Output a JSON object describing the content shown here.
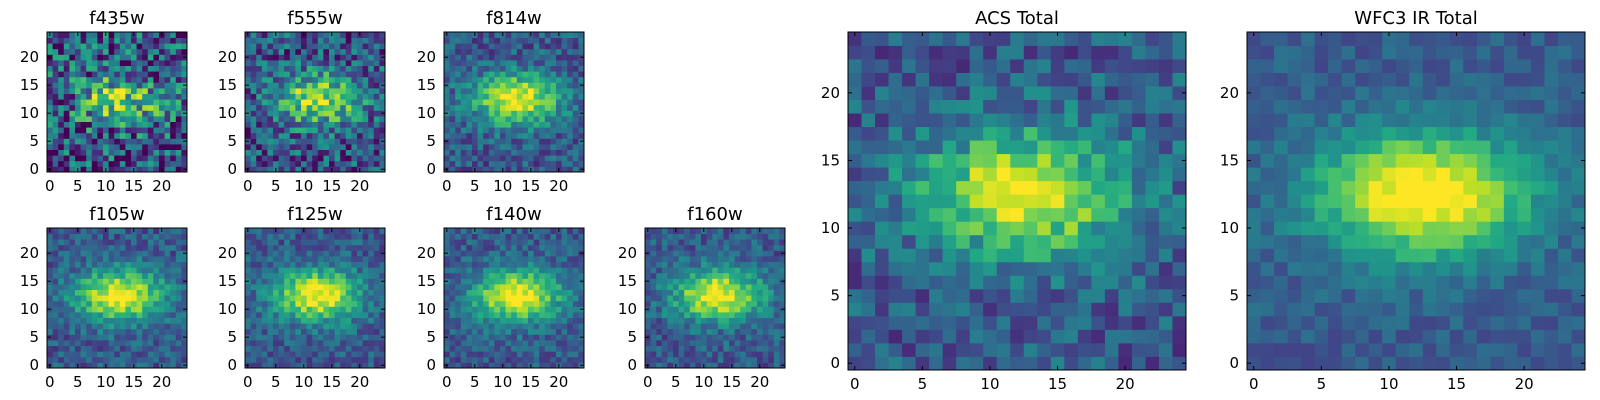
{
  "colormap": "viridis",
  "chart_data": [
    {
      "type": "heatmap",
      "title": "f435w",
      "noise": 0.75,
      "seed": 11,
      "xticks": [
        0,
        5,
        10,
        15,
        20
      ],
      "yticks": [
        0,
        5,
        10,
        15,
        20
      ],
      "x_range": [
        0,
        24
      ],
      "y_range": [
        0,
        24
      ],
      "grid": false
    },
    {
      "type": "heatmap",
      "title": "f555w",
      "noise": 0.55,
      "seed": 23,
      "xticks": [
        0,
        5,
        10,
        15,
        20
      ],
      "yticks": [
        0,
        5,
        10,
        15,
        20
      ],
      "x_range": [
        0,
        24
      ],
      "y_range": [
        0,
        24
      ],
      "grid": false
    },
    {
      "type": "heatmap",
      "title": "f814w",
      "noise": 0.35,
      "seed": 37,
      "xticks": [
        0,
        5,
        10,
        15,
        20
      ],
      "yticks": [
        0,
        5,
        10,
        15,
        20
      ],
      "x_range": [
        0,
        24
      ],
      "y_range": [
        0,
        24
      ],
      "grid": false
    },
    {
      "type": "heatmap",
      "title": "f105w",
      "noise": 0.3,
      "seed": 41,
      "xticks": [
        0,
        5,
        10,
        15,
        20
      ],
      "yticks": [
        0,
        5,
        10,
        15,
        20
      ],
      "x_range": [
        0,
        24
      ],
      "y_range": [
        0,
        24
      ],
      "grid": false
    },
    {
      "type": "heatmap",
      "title": "f125w",
      "noise": 0.3,
      "seed": 53,
      "xticks": [
        0,
        5,
        10,
        15,
        20
      ],
      "yticks": [
        0,
        5,
        10,
        15,
        20
      ],
      "x_range": [
        0,
        24
      ],
      "y_range": [
        0,
        24
      ],
      "grid": false
    },
    {
      "type": "heatmap",
      "title": "f140w",
      "noise": 0.28,
      "seed": 67,
      "xticks": [
        0,
        5,
        10,
        15,
        20
      ],
      "yticks": [
        0,
        5,
        10,
        15,
        20
      ],
      "x_range": [
        0,
        24
      ],
      "y_range": [
        0,
        24
      ],
      "grid": false
    },
    {
      "type": "heatmap",
      "title": "f160w",
      "noise": 0.3,
      "seed": 79,
      "xticks": [
        0,
        5,
        10,
        15,
        20
      ],
      "yticks": [
        0,
        5,
        10,
        15,
        20
      ],
      "x_range": [
        0,
        24
      ],
      "y_range": [
        0,
        24
      ],
      "grid": false
    },
    {
      "type": "heatmap",
      "title": "ACS Total",
      "noise": 0.35,
      "seed": 89,
      "xticks": [
        0,
        5,
        10,
        15,
        20
      ],
      "yticks": [
        0,
        5,
        10,
        15,
        20
      ],
      "x_range": [
        0,
        24
      ],
      "y_range": [
        0,
        24
      ],
      "grid": false
    },
    {
      "type": "heatmap",
      "title": "WFC3 IR Total",
      "noise": 0.18,
      "seed": 97,
      "xticks": [
        0,
        5,
        10,
        15,
        20
      ],
      "yticks": [
        0,
        5,
        10,
        15,
        20
      ],
      "x_range": [
        0,
        24
      ],
      "y_range": [
        0,
        24
      ],
      "grid": false
    }
  ]
}
